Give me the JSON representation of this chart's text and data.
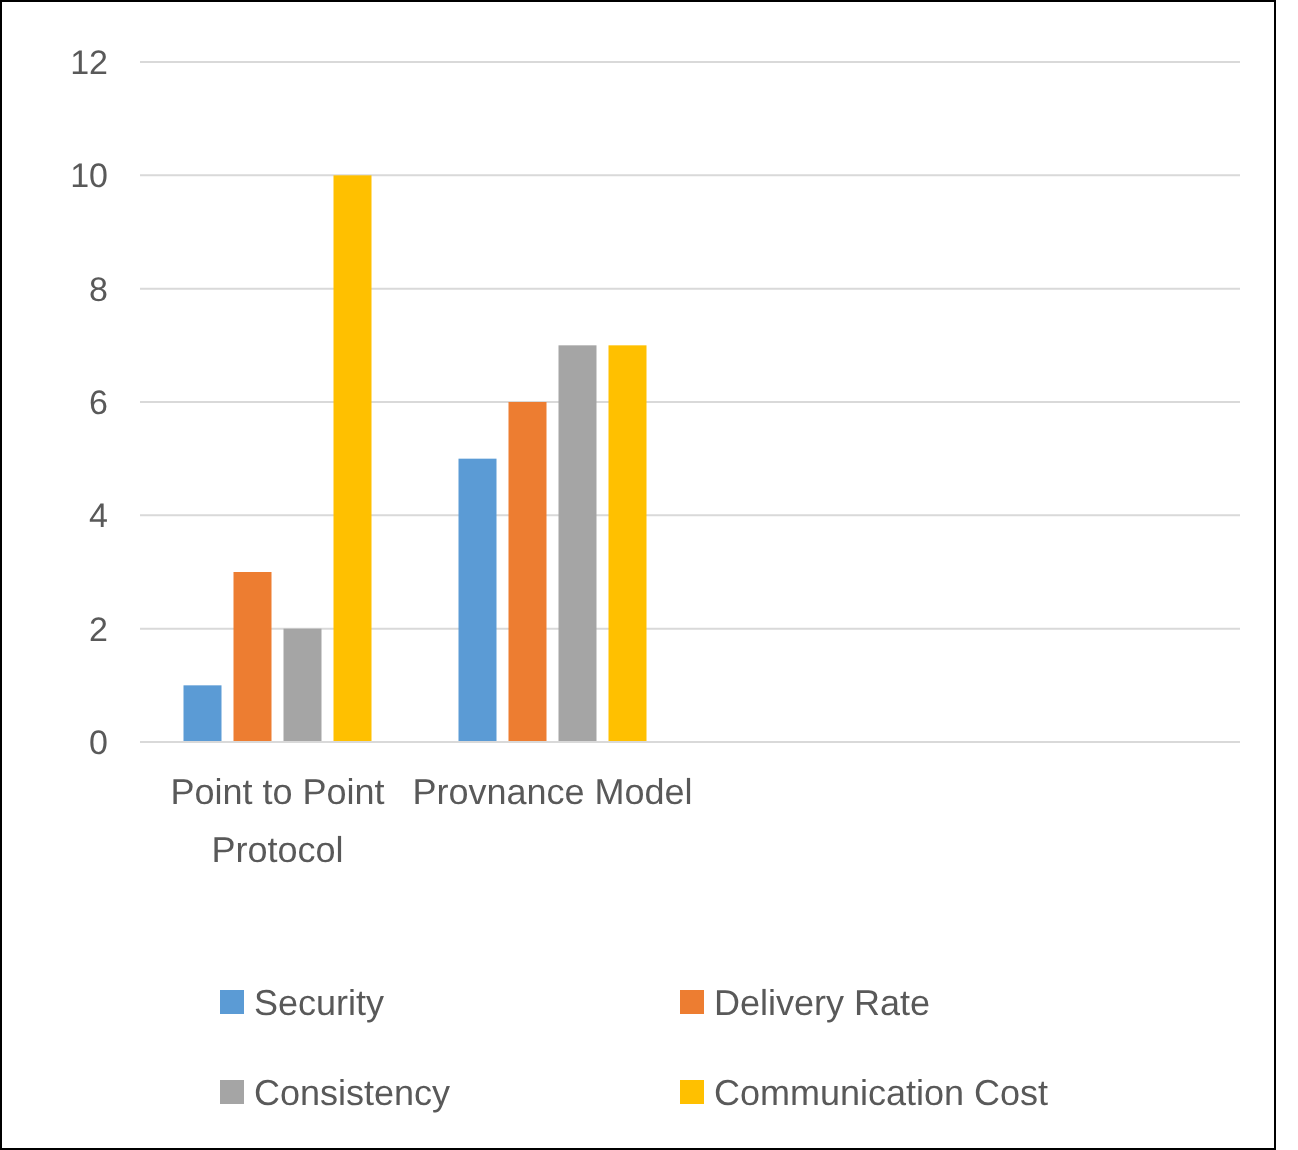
{
  "chart_data": {
    "type": "bar",
    "categories": [
      "Point to Point Protocol",
      "Provnance Model",
      null,
      null
    ],
    "series": [
      {
        "name": "Security",
        "color": "#5b9bd5",
        "values": [
          1,
          5,
          null,
          null
        ]
      },
      {
        "name": "Delivery Rate",
        "color": "#ed7d31",
        "values": [
          3,
          6,
          null,
          null
        ]
      },
      {
        "name": "Consistency",
        "color": "#a5a5a5",
        "values": [
          2,
          7,
          null,
          null
        ]
      },
      {
        "name": "Communication Cost",
        "color": "#ffc000",
        "values": [
          10,
          7,
          null,
          null
        ]
      }
    ],
    "ylim": [
      0,
      12
    ],
    "yticks": [
      0,
      2,
      4,
      6,
      8,
      10,
      12
    ],
    "grid": "y",
    "legend": "bottom"
  }
}
